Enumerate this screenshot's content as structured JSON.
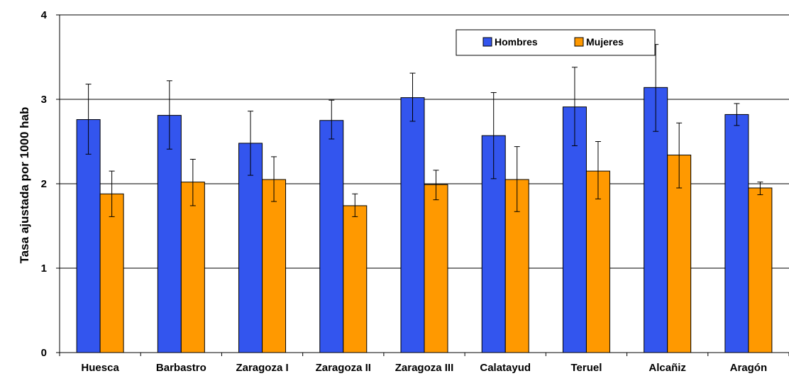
{
  "chart_data": {
    "type": "bar",
    "ylabel": "Tasa ajustada por 1000 hab",
    "ylim": [
      0,
      4
    ],
    "yticks": [
      0,
      1,
      2,
      3,
      4
    ],
    "grid": true,
    "legend_position": "top-right",
    "categories": [
      "Huesca",
      "Barbastro",
      "Zaragoza I",
      "Zaragoza II",
      "Zaragoza III",
      "Calatayud",
      "Teruel",
      "Alcañiz",
      "Aragón"
    ],
    "series": [
      {
        "name": "Hombres",
        "color": "#3355ee",
        "values": [
          2.76,
          2.81,
          2.48,
          2.75,
          3.02,
          2.57,
          2.91,
          3.14,
          2.82
        ],
        "error_low": [
          2.35,
          2.41,
          2.1,
          2.53,
          2.74,
          2.06,
          2.45,
          2.62,
          2.69
        ],
        "error_high": [
          3.18,
          3.22,
          2.86,
          2.99,
          3.31,
          3.08,
          3.38,
          3.65,
          2.95
        ]
      },
      {
        "name": "Mujeres",
        "color": "#ff9900",
        "values": [
          1.88,
          2.02,
          2.05,
          1.74,
          1.99,
          2.05,
          2.15,
          2.34,
          1.95
        ],
        "error_low": [
          1.61,
          1.74,
          1.79,
          1.61,
          1.81,
          1.67,
          1.82,
          1.95,
          1.87
        ],
        "error_high": [
          2.15,
          2.29,
          2.32,
          1.88,
          2.16,
          2.44,
          2.5,
          2.72,
          2.02
        ]
      }
    ]
  }
}
